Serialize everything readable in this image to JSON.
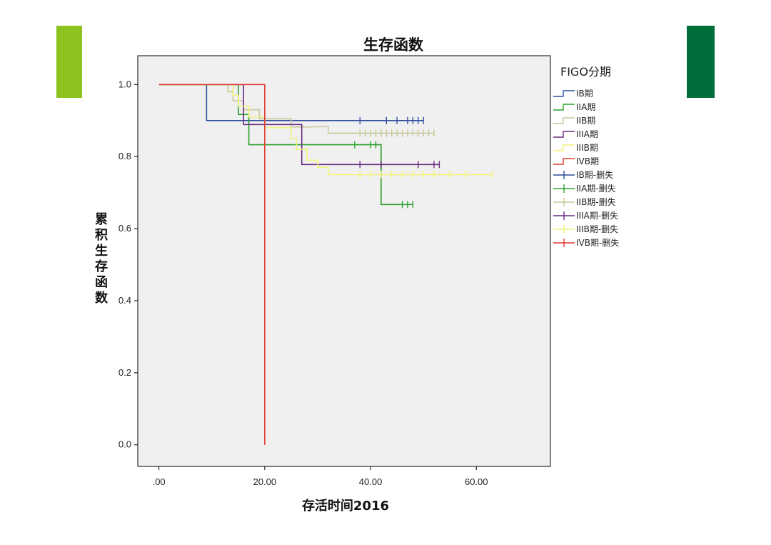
{
  "decor": {
    "left_bar_color": "#8dc21f",
    "right_bar_color": "#006e3a"
  },
  "chart_data": {
    "type": "line",
    "subtype": "kaplan-meier step",
    "title": "生存函数",
    "xlabel": "存活时间2016",
    "ylabel": "累积生存函数",
    "xlim": [
      -4,
      74
    ],
    "ylim": [
      -0.06,
      1.08
    ],
    "x_ticks": [
      0,
      20,
      40,
      60
    ],
    "x_tick_labels": [
      ".00",
      "20.00",
      "40.00",
      "60.00"
    ],
    "y_ticks": [
      0,
      0.2,
      0.4,
      0.6,
      0.8,
      1.0
    ],
    "y_tick_labels": [
      "0.0",
      "0.2",
      "0.4",
      "0.6",
      "0.8",
      "1.0"
    ],
    "grid": false,
    "plot_background": "#f0f0f0",
    "legend_position": "right",
    "legend_title": "FIGO分期",
    "legend_items": [
      {
        "label": "IB期",
        "color": "#2f4f9f",
        "kind": "line"
      },
      {
        "label": "IIA期",
        "color": "#2ea02e",
        "kind": "line"
      },
      {
        "label": "IIB期",
        "color": "#c8c89a",
        "kind": "line"
      },
      {
        "label": "IIIA期",
        "color": "#6a2c82",
        "kind": "line"
      },
      {
        "label": "IIIB期",
        "color": "#f2f27a",
        "kind": "line"
      },
      {
        "label": "IVB期",
        "color": "#e03a2f",
        "kind": "line"
      },
      {
        "label": "IB期-删失",
        "color": "#2f4f9f",
        "kind": "censor"
      },
      {
        "label": "IIA期-删失",
        "color": "#2ea02e",
        "kind": "censor"
      },
      {
        "label": "IIB期-删失",
        "color": "#c8c89a",
        "kind": "censor"
      },
      {
        "label": "IIIA期-删失",
        "color": "#6a2c82",
        "kind": "censor"
      },
      {
        "label": "IIIB期-删失",
        "color": "#f2f27a",
        "kind": "censor"
      },
      {
        "label": "IVB期-删失",
        "color": "#e03a2f",
        "kind": "censor"
      }
    ],
    "series": [
      {
        "key": "ib",
        "color": "#2f4f9f",
        "steps": [
          [
            0,
            1.0
          ],
          [
            9,
            0.9
          ],
          [
            50,
            0.9
          ]
        ],
        "censored": [
          [
            38,
            0.9
          ],
          [
            43,
            0.9
          ],
          [
            45,
            0.9
          ],
          [
            47,
            0.9
          ],
          [
            48,
            0.9
          ],
          [
            49,
            0.9
          ],
          [
            50,
            0.9
          ]
        ]
      },
      {
        "key": "iia",
        "color": "#2ea02e",
        "steps": [
          [
            0,
            1.0
          ],
          [
            15,
            0.917
          ],
          [
            17,
            0.833
          ],
          [
            42,
            0.667
          ],
          [
            48,
            0.667
          ]
        ],
        "censored": [
          [
            37,
            0.833
          ],
          [
            40,
            0.833
          ],
          [
            41,
            0.833
          ],
          [
            46,
            0.667
          ],
          [
            47,
            0.667
          ],
          [
            48,
            0.667
          ]
        ]
      },
      {
        "key": "iib",
        "color": "#c8c89a",
        "steps": [
          [
            0,
            1.0
          ],
          [
            13,
            0.98
          ],
          [
            14,
            0.955
          ],
          [
            16,
            0.93
          ],
          [
            19,
            0.905
          ],
          [
            25,
            0.882
          ],
          [
            29,
            0.883
          ],
          [
            32,
            0.865
          ],
          [
            52,
            0.865
          ]
        ],
        "censored": [
          [
            38,
            0.865
          ],
          [
            39,
            0.865
          ],
          [
            40,
            0.865
          ],
          [
            41,
            0.865
          ],
          [
            42,
            0.865
          ],
          [
            43,
            0.865
          ],
          [
            44,
            0.865
          ],
          [
            45,
            0.865
          ],
          [
            46,
            0.865
          ],
          [
            47,
            0.865
          ],
          [
            48,
            0.865
          ],
          [
            49,
            0.865
          ],
          [
            50,
            0.865
          ],
          [
            51,
            0.865
          ],
          [
            52,
            0.865
          ]
        ]
      },
      {
        "key": "iiia",
        "color": "#6a2c82",
        "steps": [
          [
            0,
            1.0
          ],
          [
            16,
            0.889
          ],
          [
            27,
            0.778
          ],
          [
            53,
            0.778
          ]
        ],
        "censored": [
          [
            38,
            0.778
          ],
          [
            42,
            0.778
          ],
          [
            49,
            0.778
          ],
          [
            52,
            0.778
          ],
          [
            53,
            0.778
          ]
        ]
      },
      {
        "key": "iiib",
        "color": "#f2f27a",
        "steps": [
          [
            0,
            1.0
          ],
          [
            14,
            0.97
          ],
          [
            15,
            0.94
          ],
          [
            17,
            0.91
          ],
          [
            20,
            0.88
          ],
          [
            25,
            0.85
          ],
          [
            26,
            0.82
          ],
          [
            28,
            0.79
          ],
          [
            30,
            0.77
          ],
          [
            32,
            0.75
          ],
          [
            63,
            0.75
          ]
        ],
        "censored": [
          [
            38,
            0.75
          ],
          [
            40,
            0.75
          ],
          [
            42,
            0.75
          ],
          [
            44,
            0.75
          ],
          [
            46,
            0.75
          ],
          [
            48,
            0.75
          ],
          [
            50,
            0.75
          ],
          [
            52,
            0.75
          ],
          [
            55,
            0.75
          ],
          [
            58,
            0.75
          ],
          [
            63,
            0.75
          ]
        ]
      },
      {
        "key": "ivb",
        "color": "#e03a2f",
        "steps": [
          [
            0,
            1.0
          ],
          [
            20,
            0.0
          ]
        ],
        "censored": []
      }
    ]
  }
}
